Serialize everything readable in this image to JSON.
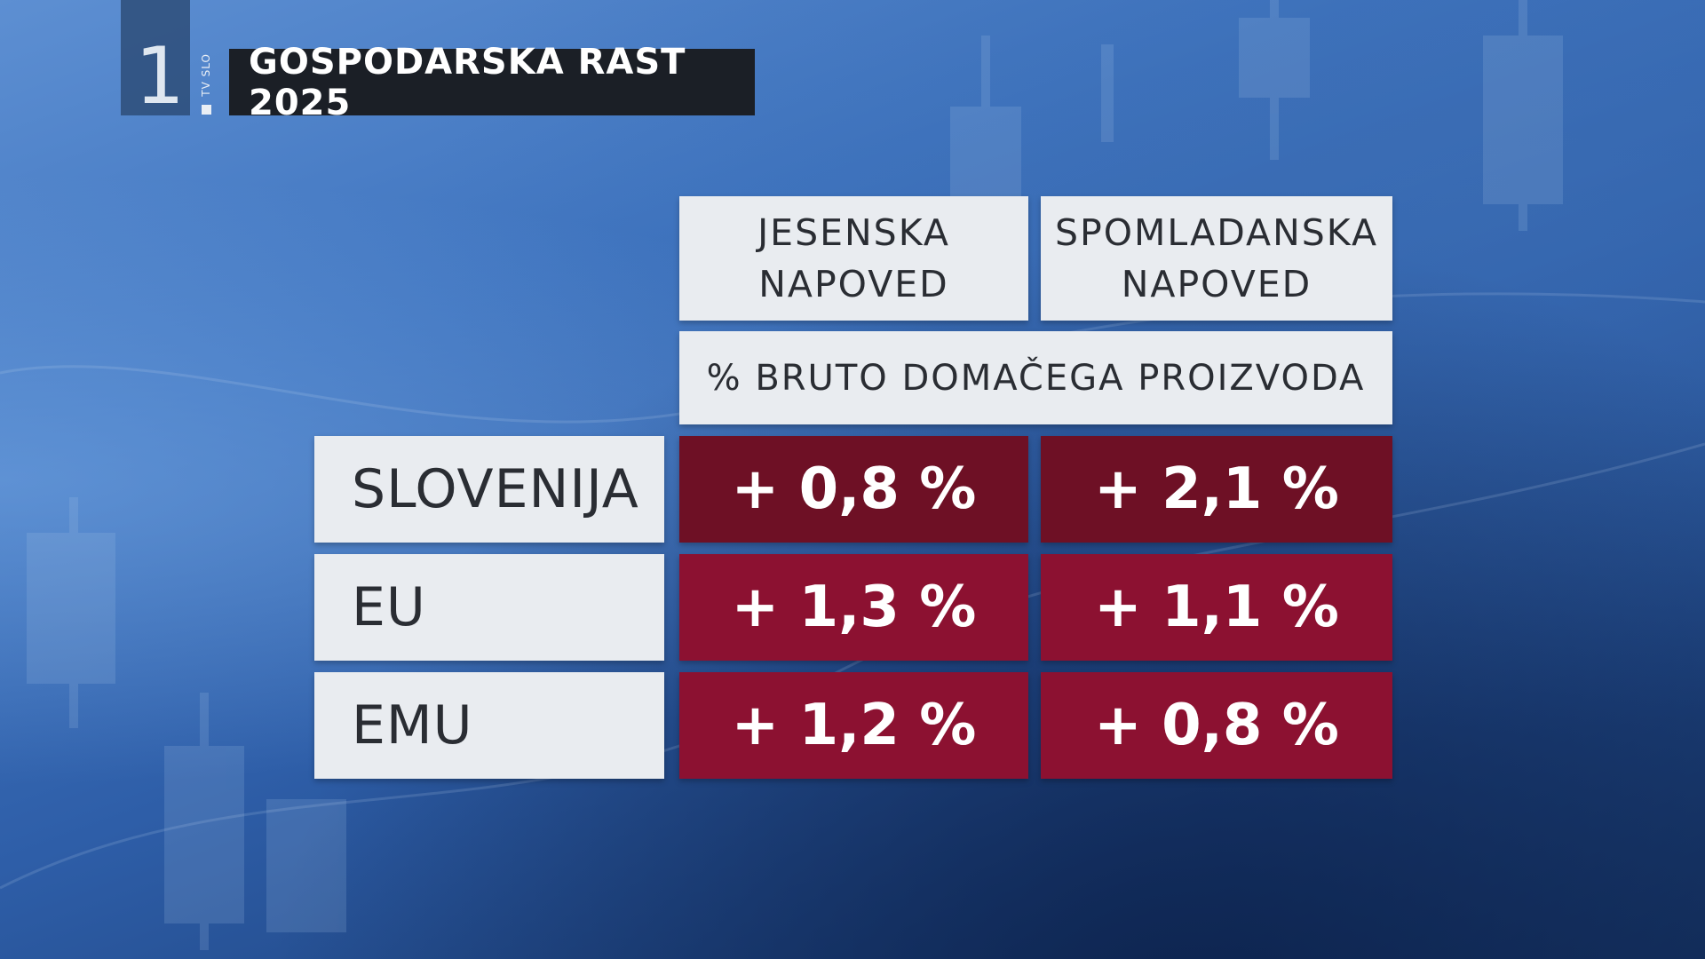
{
  "channel": {
    "number": "1",
    "side_label": "TV SLO"
  },
  "title": "GOSPODARSKA RAST 2025",
  "table": {
    "columns": [
      {
        "line1": "JESENSKA",
        "line2": "NAPOVED"
      },
      {
        "line1": "SPOMLADANSKA",
        "line2": "NAPOVED"
      }
    ],
    "subheader": "% BRUTO DOMAČEGA PROIZVODA",
    "rows": [
      {
        "label": "SLOVENIJA",
        "values": [
          "+ 0,8 %",
          "+ 2,1 %"
        ]
      },
      {
        "label": "EU",
        "values": [
          "+ 1,3 %",
          "+ 1,1 %"
        ]
      },
      {
        "label": "EMU",
        "values": [
          "+ 1,2 %",
          "+ 0,8 %"
        ]
      }
    ]
  },
  "colors": {
    "highlight_row": "#6e1025",
    "value_cell": "#8c1131",
    "label_cell": "#e9ecf0",
    "title_bar": "#1b1f26"
  }
}
